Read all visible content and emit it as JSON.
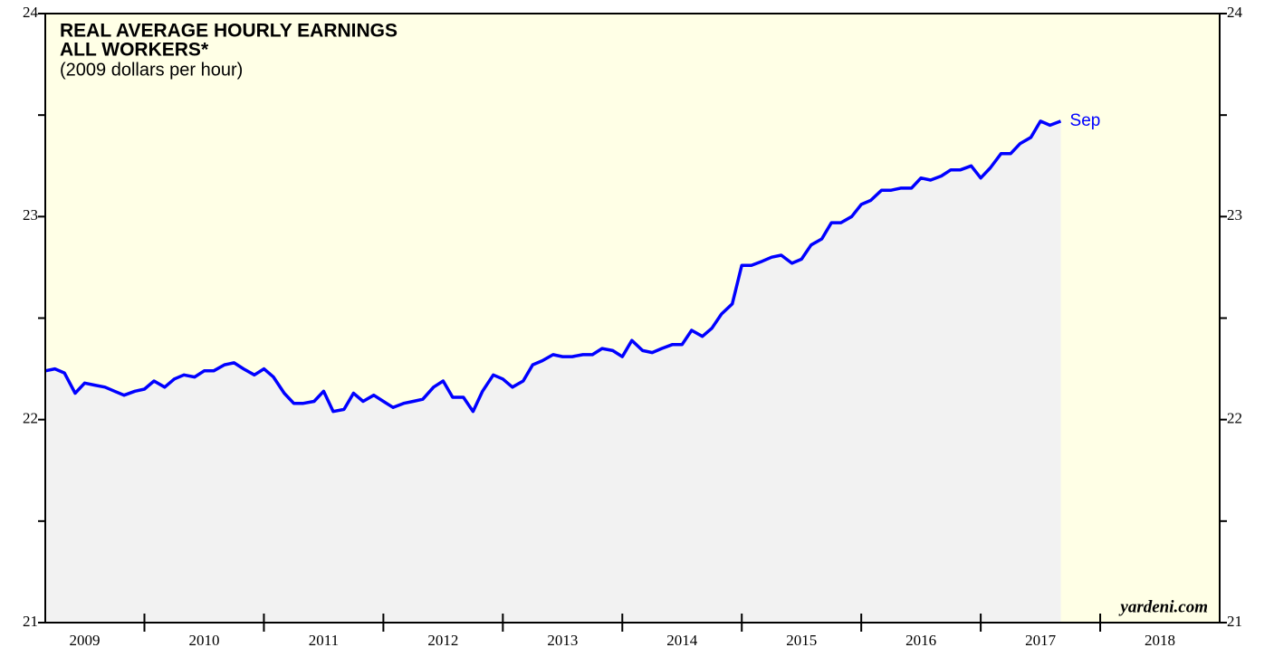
{
  "chart_data": {
    "type": "area_line",
    "title": "REAL AVERAGE HOURLY EARNINGS",
    "subtitle_bold": "ALL WORKERS*",
    "subtitle": "(2009 dollars per hour)",
    "annotation": "Sep",
    "source": "yardeni.com",
    "line_color": "#0000ff",
    "area_color": "#f2f2f2",
    "background": "#ffffe6",
    "x": [
      2009.17,
      2009.25,
      2009.33,
      2009.42,
      2009.5,
      2009.58,
      2009.67,
      2009.75,
      2009.83,
      2009.92,
      2010,
      2010.08,
      2010.17,
      2010.25,
      2010.33,
      2010.42,
      2010.5,
      2010.58,
      2010.67,
      2010.75,
      2010.83,
      2010.92,
      2011,
      2011.08,
      2011.17,
      2011.25,
      2011.33,
      2011.42,
      2011.5,
      2011.58,
      2011.67,
      2011.75,
      2011.83,
      2011.92,
      2012,
      2012.08,
      2012.17,
      2012.25,
      2012.33,
      2012.42,
      2012.5,
      2012.58,
      2012.67,
      2012.75,
      2012.83,
      2012.92,
      2013,
      2013.08,
      2013.17,
      2013.25,
      2013.33,
      2013.42,
      2013.5,
      2013.58,
      2013.67,
      2013.75,
      2013.83,
      2013.92,
      2014,
      2014.08,
      2014.17,
      2014.25,
      2014.33,
      2014.42,
      2014.5,
      2014.58,
      2014.67,
      2014.75,
      2014.83,
      2014.92,
      2015,
      2015.08,
      2015.17,
      2015.25,
      2015.33,
      2015.42,
      2015.5,
      2015.58,
      2015.67,
      2015.75,
      2015.83,
      2015.92,
      2016,
      2016.08,
      2016.17,
      2016.25,
      2016.33,
      2016.42,
      2016.5,
      2016.58,
      2016.67,
      2016.75,
      2016.83,
      2016.92,
      2017,
      2017.08,
      2017.17,
      2017.25,
      2017.33,
      2017.42,
      2017.5,
      2017.58,
      2017.67
    ],
    "values": [
      22.24,
      22.25,
      22.23,
      22.13,
      22.18,
      22.17,
      22.16,
      22.14,
      22.12,
      22.14,
      22.15,
      22.19,
      22.16,
      22.2,
      22.22,
      22.21,
      22.24,
      22.24,
      22.27,
      22.28,
      22.25,
      22.22,
      22.25,
      22.21,
      22.13,
      22.08,
      22.08,
      22.09,
      22.14,
      22.04,
      22.05,
      22.13,
      22.09,
      22.12,
      22.09,
      22.06,
      22.08,
      22.09,
      22.1,
      22.16,
      22.19,
      22.11,
      22.11,
      22.04,
      22.14,
      22.22,
      22.2,
      22.16,
      22.19,
      22.27,
      22.29,
      22.32,
      22.31,
      22.31,
      22.32,
      22.32,
      22.35,
      22.34,
      22.31,
      22.39,
      22.34,
      22.33,
      22.35,
      22.37,
      22.37,
      22.44,
      22.41,
      22.45,
      22.52,
      22.57,
      22.76,
      22.76,
      22.78,
      22.8,
      22.81,
      22.77,
      22.79,
      22.86,
      22.89,
      22.97,
      22.97,
      23.0,
      23.06,
      23.08,
      23.13,
      23.13,
      23.14,
      23.14,
      23.19,
      23.18,
      23.2,
      23.23,
      23.23,
      23.25,
      23.19,
      23.24,
      23.31,
      23.31,
      23.36,
      23.39,
      23.47,
      23.45,
      23.47
    ],
    "xlim": [
      2009.17,
      2019
    ],
    "xticks": [
      2010,
      2011,
      2012,
      2013,
      2014,
      2015,
      2016,
      2017,
      2018
    ],
    "xlabels": [
      {
        "value": 2009.5,
        "label": "2009"
      },
      {
        "value": 2010.5,
        "label": "2010"
      },
      {
        "value": 2011.5,
        "label": "2011"
      },
      {
        "value": 2012.5,
        "label": "2012"
      },
      {
        "value": 2013.5,
        "label": "2013"
      },
      {
        "value": 2014.5,
        "label": "2014"
      },
      {
        "value": 2015.5,
        "label": "2015"
      },
      {
        "value": 2016.5,
        "label": "2016"
      },
      {
        "value": 2017.5,
        "label": "2017"
      },
      {
        "value": 2018.5,
        "label": "2018"
      }
    ],
    "ylim": [
      21,
      24
    ],
    "yticks": [
      21,
      22,
      23,
      24
    ],
    "minor_yticks": [
      21.5,
      22.5,
      23.5
    ]
  }
}
